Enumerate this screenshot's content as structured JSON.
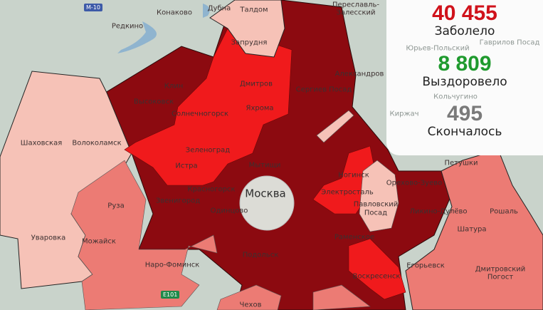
{
  "stats": {
    "infected": {
      "value": "40 455",
      "label": "Заболело",
      "color": "#d0121b"
    },
    "recovered": {
      "value": "8 809",
      "label": "Выздоровело",
      "color": "#1f9a2e"
    },
    "deaths": {
      "value": "495",
      "label": "Скончалось",
      "color": "#7a7a7a"
    }
  },
  "legend_colors": {
    "low": "#f6c2b7",
    "medium": "#ec7b74",
    "high": "#f01a1c",
    "very_high": "#8c0a10",
    "background": "#c9d3cb"
  },
  "road_shields": {
    "m10": "M-10",
    "e101": "E101"
  },
  "places": {
    "moscow": "Москва",
    "konakovo": "Конаково",
    "redkino": "Редкино",
    "dubna": "Дубна",
    "taldom": "Талдом",
    "zaprudnya": "Запрудня",
    "klin": "Клин",
    "vysokovsk": "Высоковск",
    "solnechnogorsk": "Солнечногорск",
    "dmitrov": "Дмитров",
    "yakhroma": "Яхрома",
    "sergiev_posad": "Сергиев Посад",
    "shakhovskaya": "Шаховская",
    "volokolamsk": "Волоколамск",
    "zelenograd": "Зеленоград",
    "istra": "Истра",
    "mytishchi": "Мытищи",
    "krasnogorsk": "Красногорск",
    "zvenigorod": "Звенигород",
    "odintsovo": "Одинцово",
    "ruza": "Руза",
    "uvarovka": "Уваровка",
    "mozhaysk": "Можайск",
    "naro_fominsk": "Наро-Фоминск",
    "podolsk": "Подольск",
    "chekhov": "Чехов",
    "noginsk": "Ногинск",
    "elektrostal": "Электросталь",
    "orekhovo_zuevo": "Орехово-Зуево",
    "pavlovsky_posad_1": "Павловский",
    "pavlovsky_posad_2": "Посад",
    "likino_dulevo": "Ликино-Дулёво",
    "roshal": "Рошаль",
    "shatura": "Шатура",
    "ramenskoye": "Раменское",
    "egoryevsk": "Егорьевск",
    "dmitrovsky_pogost_1": "Дмитровский",
    "dmitrovsky_pogost_2": "Погост",
    "voskresensk": "Воскресенск",
    "petushki": "Петушки",
    "aleksandrov": "Александров",
    "pereslavl_1": "Переславль-",
    "pereslavl_2": "Залесский",
    "yuryev_polsky": "Юрьев-Польский",
    "gavrilov_posad": "Гаврилов Посад",
    "kirzhach": "Киржач",
    "kolchugino": "Кольчугино"
  }
}
